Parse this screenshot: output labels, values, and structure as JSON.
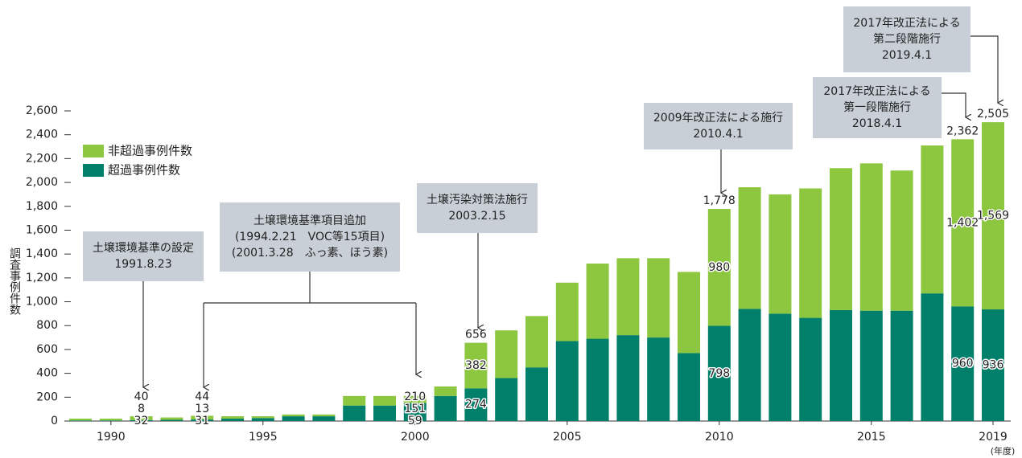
{
  "chart_data": {
    "type": "stacked-bar",
    "y_label": "調査事例件数",
    "x_unit": "(年度)",
    "categories": [
      null,
      "1990",
      null,
      null,
      null,
      null,
      "1995",
      null,
      null,
      null,
      null,
      "2000",
      null,
      null,
      null,
      null,
      "2005",
      null,
      null,
      null,
      null,
      "2010",
      null,
      null,
      null,
      null,
      "2015",
      null,
      null,
      null,
      "2019"
    ],
    "series": [
      {
        "name": "超過事例件数",
        "color": "#00806a",
        "values": [
          5,
          5,
          8,
          10,
          13,
          20,
          25,
          40,
          40,
          130,
          130,
          151,
          210,
          274,
          360,
          450,
          670,
          690,
          720,
          700,
          570,
          798,
          940,
          900,
          865,
          930,
          925,
          925,
          1070,
          960,
          936
        ],
        "value_labels": [
          null,
          null,
          "8",
          null,
          "13",
          null,
          null,
          null,
          null,
          null,
          null,
          "151",
          null,
          "274",
          null,
          null,
          null,
          null,
          null,
          null,
          null,
          "798",
          null,
          null,
          null,
          null,
          null,
          null,
          null,
          "960",
          "936"
        ]
      },
      {
        "name": "非超過事例件数",
        "color": "#8dc63f",
        "values": [
          15,
          15,
          32,
          20,
          31,
          20,
          15,
          15,
          15,
          80,
          80,
          59,
          80,
          382,
          400,
          430,
          490,
          630,
          645,
          665,
          680,
          980,
          1020,
          1000,
          1085,
          1190,
          1235,
          1175,
          1240,
          1402,
          1569
        ],
        "value_labels": [
          null,
          null,
          "32",
          null,
          "31",
          null,
          null,
          null,
          null,
          null,
          null,
          "59",
          null,
          "382",
          null,
          null,
          null,
          null,
          null,
          null,
          null,
          "980",
          null,
          null,
          null,
          null,
          null,
          null,
          null,
          "1,402",
          "1,569"
        ]
      }
    ],
    "totals": [
      null,
      null,
      40,
      null,
      44,
      null,
      null,
      null,
      null,
      null,
      null,
      210,
      null,
      656,
      null,
      null,
      null,
      null,
      null,
      null,
      null,
      1778,
      null,
      null,
      null,
      null,
      null,
      null,
      null,
      2362,
      2505
    ],
    "total_labels": [
      null,
      null,
      "40",
      null,
      "44",
      null,
      null,
      null,
      null,
      null,
      null,
      "210",
      null,
      "656",
      null,
      null,
      null,
      null,
      null,
      null,
      null,
      "1,778",
      null,
      null,
      null,
      null,
      null,
      null,
      null,
      "2,362",
      "2,505"
    ],
    "ylim": [
      0,
      2600
    ],
    "yticks": [
      0,
      200,
      400,
      600,
      800,
      {
        "value": 1000,
        "label": "1,000"
      },
      {
        "value": 1200,
        "label": "1,200"
      },
      {
        "value": 1400,
        "label": "1,400"
      },
      {
        "value": 1600,
        "label": "1,600"
      },
      {
        "value": 1800,
        "label": "1,800"
      },
      {
        "value": 2000,
        "label": "2,000"
      },
      {
        "value": 2200,
        "label": "2,200"
      },
      {
        "value": 2400,
        "label": "2,400"
      },
      {
        "value": 2600,
        "label": "2,600"
      }
    ],
    "annotations": [
      {
        "lines": [
          "土壌環境基準の設定",
          "1991.8.23"
        ]
      },
      {
        "lines": [
          "土壌環境基準項目追加",
          "(1994.2.21　VOC等15項目)",
          "(2001.3.28　ふっ素、ほう素)"
        ]
      },
      {
        "lines": [
          "土壌汚染対策法施行",
          "2003.2.15"
        ]
      },
      {
        "lines": [
          "2009年改正法による施行",
          "2010.4.1"
        ]
      },
      {
        "lines": [
          "2017年改正法による",
          "第一段階施行",
          "2018.4.1"
        ]
      },
      {
        "lines": [
          "2017年改正法による",
          "第二段階施行",
          "2019.4.1"
        ]
      }
    ]
  }
}
